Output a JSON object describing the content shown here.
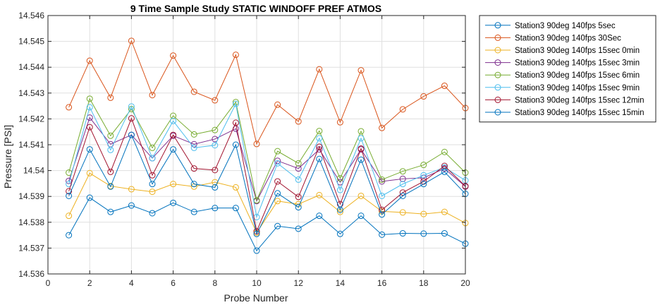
{
  "chart_data": {
    "type": "line",
    "title": "9 Time Sample Study STATIC WINDOFF PREF ATMOS",
    "xlabel": "Probe Number",
    "ylabel": "Pressure [PSI]",
    "xlim": [
      0,
      20
    ],
    "ylim": [
      14.536,
      14.546
    ],
    "xticks": [
      0,
      2,
      4,
      6,
      8,
      10,
      12,
      14,
      16,
      18,
      20
    ],
    "yticks": [
      14.536,
      14.537,
      14.538,
      14.539,
      14.54,
      14.541,
      14.542,
      14.543,
      14.544,
      14.545,
      14.546
    ],
    "ytick_labels": [
      "14.536",
      "14.537",
      "14.538",
      "14.539",
      "14.54",
      "14.541",
      "14.542",
      "14.543",
      "14.544",
      "14.545",
      "14.546"
    ],
    "grid": true,
    "legend_position": "outside-top-right",
    "marker": "circle",
    "x": [
      1,
      2,
      3,
      4,
      5,
      6,
      7,
      8,
      9,
      10,
      11,
      12,
      13,
      14,
      15,
      16,
      17,
      18,
      19,
      20
    ],
    "series": [
      {
        "name": "Station3 90deg 140fps 5sec",
        "color": "#0072BD",
        "values": [
          14.5375,
          14.53895,
          14.5384,
          14.53865,
          14.53835,
          14.53875,
          14.5384,
          14.53855,
          14.53855,
          14.5369,
          14.53785,
          14.53775,
          14.53825,
          14.53755,
          14.53825,
          14.53752,
          14.53757,
          14.53756,
          14.53757,
          14.53717
        ]
      },
      {
        "name": "Station3 90deg 140fps 30Sec",
        "color": "#D95319",
        "values": [
          14.54245,
          14.54425,
          14.54282,
          14.54502,
          14.54292,
          14.54445,
          14.54305,
          14.54272,
          14.54448,
          14.54103,
          14.54255,
          14.5419,
          14.54392,
          14.54187,
          14.54388,
          14.54165,
          14.54237,
          14.54287,
          14.54328,
          14.54242
        ]
      },
      {
        "name": "Station3 90deg 140fps 15sec 0min",
        "color": "#EDB120",
        "values": [
          14.53825,
          14.5399,
          14.5394,
          14.53928,
          14.53918,
          14.53948,
          14.53938,
          14.53955,
          14.53935,
          14.5376,
          14.53882,
          14.5387,
          14.53905,
          14.5384,
          14.53902,
          14.53842,
          14.53838,
          14.53832,
          14.5384,
          14.53797
        ]
      },
      {
        "name": "Station3 90deg 140fps 15sec 3min",
        "color": "#7E2F8E",
        "values": [
          14.5396,
          14.54205,
          14.54102,
          14.54138,
          14.54048,
          14.54135,
          14.54102,
          14.54122,
          14.54162,
          14.53882,
          14.54038,
          14.54008,
          14.54082,
          14.53955,
          14.54082,
          14.53958,
          14.53968,
          14.53972,
          14.54008,
          14.53938
        ]
      },
      {
        "name": "Station3 90deg 140fps 15sec 6min",
        "color": "#77AC30",
        "values": [
          14.53992,
          14.54278,
          14.54135,
          14.54238,
          14.54088,
          14.54212,
          14.5414,
          14.54157,
          14.54265,
          14.53885,
          14.54075,
          14.54028,
          14.54153,
          14.5397,
          14.54152,
          14.53965,
          14.53997,
          14.54022,
          14.54072,
          14.53992
        ]
      },
      {
        "name": "Station3 90deg 140fps 15sec 9min",
        "color": "#4DBEEE",
        "values": [
          14.53948,
          14.54245,
          14.5408,
          14.54248,
          14.54048,
          14.54192,
          14.54088,
          14.54098,
          14.54258,
          14.5382,
          14.54028,
          14.53965,
          14.54125,
          14.53925,
          14.54125,
          14.53902,
          14.53948,
          14.53982,
          14.54012,
          14.53962
        ]
      },
      {
        "name": "Station3 90deg 140fps 15sec 12min",
        "color": "#A2142F",
        "values": [
          14.5392,
          14.54168,
          14.53995,
          14.54202,
          14.53982,
          14.54138,
          14.54008,
          14.54002,
          14.54185,
          14.53765,
          14.53958,
          14.53898,
          14.54092,
          14.5387,
          14.54085,
          14.53848,
          14.53915,
          14.53958,
          14.54018,
          14.5394
        ]
      },
      {
        "name": "Station3 90deg 140fps 15sec 15min",
        "color": "#0072BD",
        "values": [
          14.53902,
          14.54082,
          14.53938,
          14.54138,
          14.53948,
          14.54082,
          14.53948,
          14.53935,
          14.541,
          14.53755,
          14.53912,
          14.53858,
          14.54045,
          14.53848,
          14.54042,
          14.5383,
          14.53902,
          14.53948,
          14.53995,
          14.5391
        ]
      }
    ]
  }
}
